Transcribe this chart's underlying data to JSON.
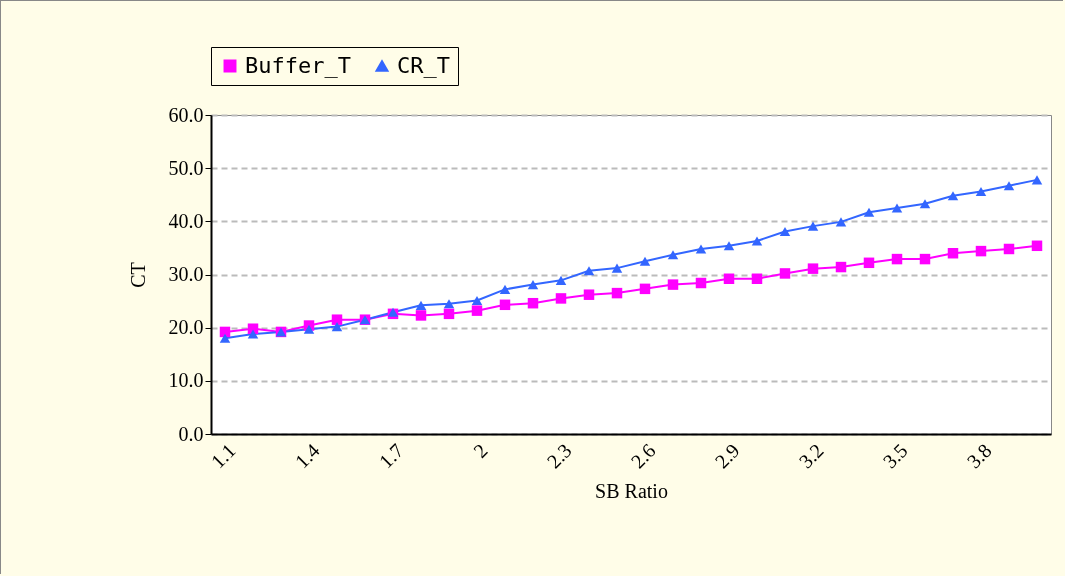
{
  "chart_data": {
    "type": "line",
    "xlabel": "SB Ratio",
    "ylabel": "CT",
    "categories": [
      "1.1",
      null,
      null,
      "1.4",
      null,
      null,
      "1.7",
      null,
      null,
      "2",
      null,
      null,
      "2.3",
      null,
      null,
      "2.6",
      null,
      null,
      "2.9",
      null,
      null,
      "3.2",
      null,
      null,
      "3.5",
      null,
      null,
      "3.8",
      null,
      null
    ],
    "series": [
      {
        "name": "Buffer_T",
        "color": "#ff00ff",
        "marker": "square",
        "values": [
          19.2,
          19.8,
          19.2,
          20.4,
          21.5,
          21.5,
          22.6,
          22.3,
          22.6,
          23.2,
          24.3,
          24.6,
          25.5,
          26.2,
          26.5,
          27.3,
          28.1,
          28.4,
          29.2,
          29.2,
          30.2,
          31.1,
          31.4,
          32.2,
          32.9,
          32.9,
          34.0,
          34.4,
          34.8,
          35.4
        ]
      },
      {
        "name": "CR_T",
        "color": "#3366ff",
        "marker": "triangle",
        "values": [
          18.0,
          18.8,
          19.2,
          19.7,
          20.2,
          21.5,
          22.9,
          24.2,
          24.5,
          25.1,
          27.2,
          28.1,
          28.9,
          30.7,
          31.2,
          32.5,
          33.7,
          34.8,
          35.4,
          36.3,
          38.1,
          39.1,
          39.9,
          41.7,
          42.5,
          43.3,
          44.8,
          45.6,
          46.7,
          47.8
        ]
      }
    ],
    "ylim": [
      0,
      60
    ],
    "yticks": [
      {
        "value": 0,
        "label": "0.0"
      },
      {
        "value": 10,
        "label": "10.0"
      },
      {
        "value": 20,
        "label": "20.0"
      },
      {
        "value": 30,
        "label": "30.0"
      },
      {
        "value": 40,
        "label": "40.0"
      },
      {
        "value": 50,
        "label": "50.0"
      },
      {
        "value": 60,
        "label": "60.0"
      }
    ],
    "grid": "y",
    "legend": "top",
    "line_style": "solid"
  }
}
